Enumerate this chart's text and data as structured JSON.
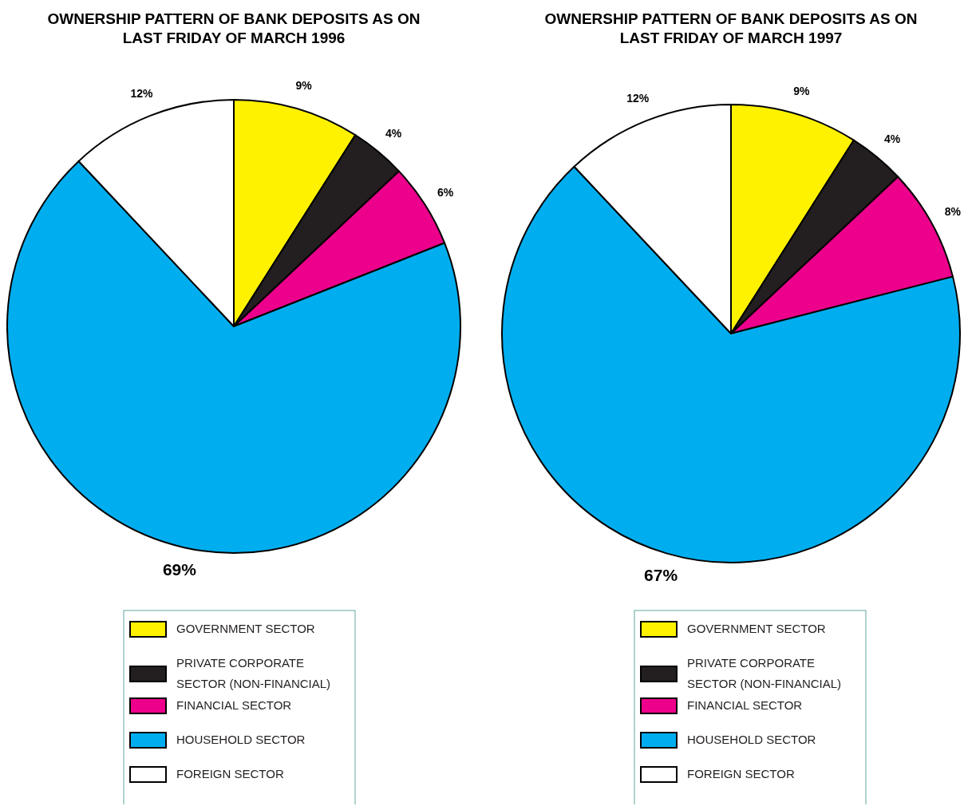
{
  "chart_data": [
    {
      "type": "pie",
      "title": "OWNERSHIP PATTERN OF BANK DEPOSITS AS ON LAST FRIDAY OF MARCH 1996",
      "categories": [
        "GOVERNMENT SECTOR",
        "PRIVATE CORPORATE SECTOR (NON-FINANCIAL)",
        "FINANCIAL SECTOR",
        "HOUSEHOLD SECTOR",
        "FOREIGN SECTOR"
      ],
      "values": [
        9,
        4,
        6,
        69,
        12
      ],
      "value_labels": [
        "9%",
        "4%",
        "6%",
        "69%",
        "12%"
      ],
      "colors": [
        "#fff200",
        "#231f20",
        "#ec008c",
        "#00aeef",
        "#ffffff"
      ],
      "legend": "bottom"
    },
    {
      "type": "pie",
      "title": "OWNERSHIP PATTERN OF BANK DEPOSITS AS ON LAST FRIDAY OF MARCH 1997",
      "categories": [
        "GOVERNMENT SECTOR",
        "PRIVATE CORPORATE SECTOR (NON-FINANCIAL)",
        "FINANCIAL SECTOR",
        "HOUSEHOLD SECTOR",
        "FOREIGN SECTOR"
      ],
      "values": [
        9,
        4,
        8,
        67,
        12
      ],
      "value_labels": [
        "9%",
        "4%",
        "8%",
        "67%",
        "12%"
      ],
      "colors": [
        "#fff200",
        "#231f20",
        "#ec008c",
        "#00aeef",
        "#ffffff"
      ],
      "legend": "bottom"
    }
  ]
}
